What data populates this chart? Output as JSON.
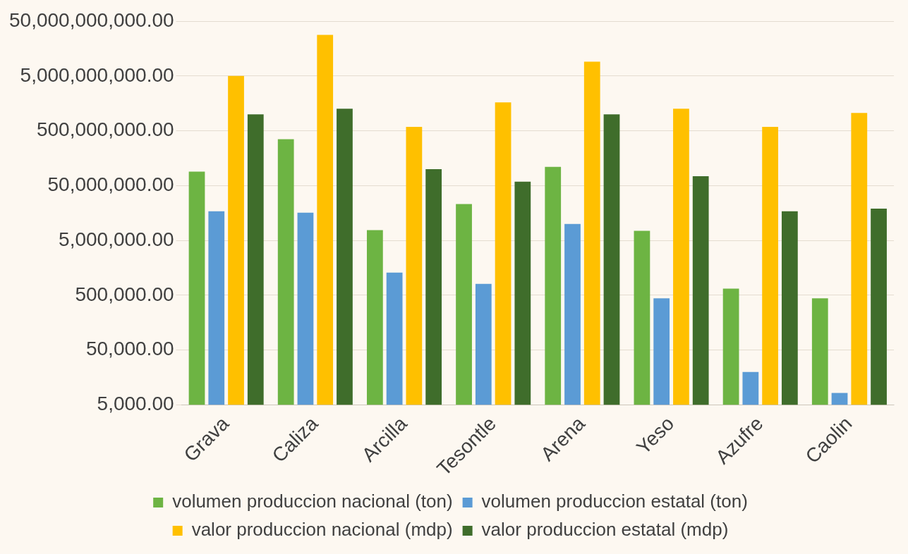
{
  "chart_data": {
    "type": "bar",
    "log": true,
    "grid": "y",
    "legend": "bottom",
    "categories": [
      "Grava",
      "Caliza",
      "Arcilla",
      "Tesontle",
      "Arena",
      "Yeso",
      "Azufre",
      "Caolin"
    ],
    "series": [
      {
        "name": "volumen produccion nacional (ton)",
        "color": "#6db443",
        "values": [
          90000000,
          350000000,
          7700000,
          23000000,
          110000000,
          7500000,
          660000,
          440000
        ]
      },
      {
        "name": "volumen produccion estatal (ton)",
        "color": "#5b9bd5",
        "values": [
          17000000,
          16000000,
          1300000,
          810000,
          10000000,
          440000,
          20000,
          8300
        ]
      },
      {
        "name": "valor produccion nacional (mdp)",
        "color": "#ffc000",
        "values": [
          5000000000,
          28000000000,
          590000000,
          1650000000,
          9100000000,
          1260000000,
          590000000,
          1060000000
        ]
      },
      {
        "name": "valor produccion estatal (mdp)",
        "color": "#3f6d2b",
        "values": [
          1000000000,
          1260000000,
          100000000,
          59000000,
          1000000000,
          74000000,
          17000000,
          19000000
        ]
      }
    ],
    "ylim": [
      5000,
      50000000000
    ],
    "yticks": [
      {
        "value": 5000,
        "label": "5,000.00"
      },
      {
        "value": 50000,
        "label": "50,000.00"
      },
      {
        "value": 500000,
        "label": "500,000.00"
      },
      {
        "value": 5000000,
        "label": "5,000,000.00"
      },
      {
        "value": 50000000,
        "label": "50,000,000.00"
      },
      {
        "value": 500000000,
        "label": "500,000,000.00"
      },
      {
        "value": 5000000000,
        "label": "5,000,000,000.00"
      },
      {
        "value": 50000000000,
        "label": "50,000,000,000.00"
      }
    ]
  }
}
